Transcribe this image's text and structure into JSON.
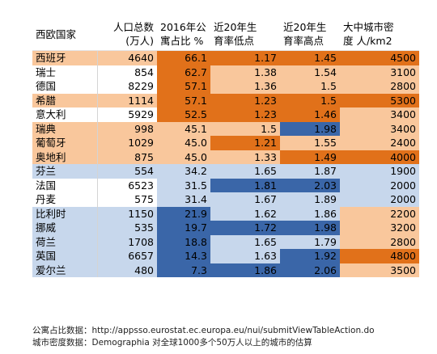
{
  "header": {
    "country": "西欧国家",
    "pop_line1": "人口总数",
    "pop_line2": "(万人)",
    "share_line1": "2016年公",
    "share_line2": "寓占比 %",
    "low_line1": "近20年生",
    "low_line2": "育率低点",
    "high_line1": "近20年生",
    "high_line2": "育率高点",
    "density_line1": "大中城市密",
    "density_line2": "度 人/km2"
  },
  "colors": {
    "dark_blue": "#3a66a8",
    "light_blue": "#c7d7ec",
    "dark_orange": "#e1711a",
    "light_orange": "#f9c79c",
    "plain": "#ffffff"
  },
  "rows": [
    {
      "name": "西班牙",
      "pop": "4640",
      "share": "66.1",
      "low": "1.17",
      "high": "1.45",
      "density": "4500",
      "row_bg": "light_orange",
      "share_bg": "dark_orange",
      "low_bg": "dark_orange",
      "high_bg": "dark_orange",
      "density_bg": "dark_orange"
    },
    {
      "name": "瑞士",
      "pop": "854",
      "share": "62.7",
      "low": "1.38",
      "high": "1.54",
      "density": "3100",
      "row_bg": "plain",
      "share_bg": "dark_orange",
      "low_bg": "light_orange",
      "high_bg": "light_orange",
      "density_bg": "light_orange"
    },
    {
      "name": "德国",
      "pop": "8229",
      "share": "57.1",
      "low": "1.36",
      "high": "1.5",
      "density": "2800",
      "row_bg": "plain",
      "share_bg": "dark_orange",
      "low_bg": "light_orange",
      "high_bg": "light_orange",
      "density_bg": "light_orange"
    },
    {
      "name": "希腊",
      "pop": "1114",
      "share": "57.1",
      "low": "1.23",
      "high": "1.5",
      "density": "5300",
      "row_bg": "light_orange",
      "share_bg": "dark_orange",
      "low_bg": "dark_orange",
      "high_bg": "dark_orange",
      "density_bg": "dark_orange"
    },
    {
      "name": "意大利",
      "pop": "5929",
      "share": "52.5",
      "low": "1.23",
      "high": "1.46",
      "density": "3400",
      "row_bg": "plain",
      "share_bg": "dark_orange",
      "low_bg": "dark_orange",
      "high_bg": "dark_orange",
      "density_bg": "light_orange"
    },
    {
      "name": "瑞典",
      "pop": "998",
      "share": "45.1",
      "low": "1.5",
      "high": "1.98",
      "density": "3400",
      "row_bg": "light_orange",
      "share_bg": "light_orange",
      "low_bg": "light_orange",
      "high_bg": "dark_blue",
      "density_bg": "light_orange"
    },
    {
      "name": "葡萄牙",
      "pop": "1029",
      "share": "45.0",
      "low": "1.21",
      "high": "1.55",
      "density": "2400",
      "row_bg": "light_orange",
      "share_bg": "light_orange",
      "low_bg": "dark_orange",
      "high_bg": "light_orange",
      "density_bg": "light_orange"
    },
    {
      "name": "奥地利",
      "pop": "875",
      "share": "45.0",
      "low": "1.33",
      "high": "1.49",
      "density": "4000",
      "row_bg": "light_orange",
      "share_bg": "light_orange",
      "low_bg": "light_orange",
      "high_bg": "dark_orange",
      "density_bg": "dark_orange"
    },
    {
      "name": "芬兰",
      "pop": "554",
      "share": "34.2",
      "low": "1.65",
      "high": "1.87",
      "density": "1900",
      "row_bg": "light_blue",
      "share_bg": "light_blue",
      "low_bg": "light_blue",
      "high_bg": "light_blue",
      "density_bg": "light_blue"
    },
    {
      "name": "法国",
      "pop": "6523",
      "share": "31.5",
      "low": "1.81",
      "high": "2.03",
      "density": "2000",
      "row_bg": "plain",
      "share_bg": "light_blue",
      "low_bg": "dark_blue",
      "high_bg": "dark_blue",
      "density_bg": "light_blue"
    },
    {
      "name": "丹麦",
      "pop": "575",
      "share": "31.4",
      "low": "1.67",
      "high": "1.89",
      "density": "2000",
      "row_bg": "plain",
      "share_bg": "light_blue",
      "low_bg": "light_blue",
      "high_bg": "light_blue",
      "density_bg": "light_blue"
    },
    {
      "name": "比利时",
      "pop": "1150",
      "share": "21.9",
      "low": "1.62",
      "high": "1.86",
      "density": "2200",
      "row_bg": "light_blue",
      "share_bg": "dark_blue",
      "low_bg": "light_blue",
      "high_bg": "light_blue",
      "density_bg": "light_orange"
    },
    {
      "name": "挪威",
      "pop": "535",
      "share": "19.7",
      "low": "1.72",
      "high": "1.98",
      "density": "3200",
      "row_bg": "light_blue",
      "share_bg": "dark_blue",
      "low_bg": "dark_blue",
      "high_bg": "dark_blue",
      "density_bg": "light_orange"
    },
    {
      "name": "荷兰",
      "pop": "1708",
      "share": "18.8",
      "low": "1.65",
      "high": "1.79",
      "density": "2800",
      "row_bg": "light_blue",
      "share_bg": "dark_blue",
      "low_bg": "light_blue",
      "high_bg": "light_blue",
      "density_bg": "light_orange"
    },
    {
      "name": "英国",
      "pop": "6657",
      "share": "14.3",
      "low": "1.63",
      "high": "1.92",
      "density": "4800",
      "row_bg": "light_blue",
      "share_bg": "dark_blue",
      "low_bg": "light_blue",
      "high_bg": "dark_blue",
      "density_bg": "dark_orange"
    },
    {
      "name": "爱尔兰",
      "pop": "480",
      "share": "7.3",
      "low": "1.86",
      "high": "2.06",
      "density": "3500",
      "row_bg": "light_blue",
      "share_bg": "dark_blue",
      "low_bg": "dark_blue",
      "high_bg": "dark_blue",
      "density_bg": "light_orange"
    }
  ],
  "notes": {
    "line1": "公寓占比数据：http://appsso.eurostat.ec.europa.eu/nui/submitViewTableAction.do",
    "line2": "城市密度数据：Demographia 对全球1000多个50万人以上的城市的估算"
  }
}
